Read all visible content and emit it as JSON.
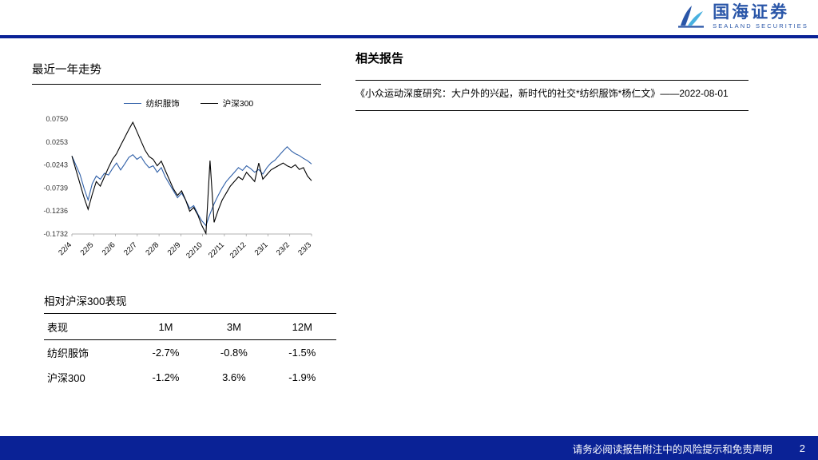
{
  "header": {
    "logo_cn": "国海证券",
    "logo_en": "SEALAND SECURITIES"
  },
  "colors": {
    "navy_bar": "#0a2296",
    "logo_blue": "#2a56a8",
    "series_blue": "#3060a8",
    "series_black": "#000000"
  },
  "left": {
    "chart_section_title": "最近一年走势",
    "table_section_title": "相对沪深300表现",
    "table": {
      "headers": [
        "表现",
        "1M",
        "3M",
        "12M"
      ],
      "rows": [
        {
          "label": "纺织服饰",
          "values": [
            "-2.7%",
            "-0.8%",
            "-1.5%"
          ]
        },
        {
          "label": "沪深300",
          "values": [
            "-1.2%",
            "3.6%",
            "-1.9%"
          ]
        }
      ]
    }
  },
  "right": {
    "title": "相关报告",
    "report": "《小众运动深度研究：大户外的兴起，新时代的社交*纺织服饰*杨仁文》——2022-08-01"
  },
  "footer": {
    "disclaimer": "请务必阅读报告附注中的风险提示和免责声明",
    "page": "2"
  },
  "chart_data": {
    "type": "line",
    "title": "最近一年走势",
    "legend_position": "top",
    "grid": false,
    "ylim": [
      -0.1732,
      0.075
    ],
    "y_tick_labels": [
      "0.0750",
      "0.0253",
      "-0.0243",
      "-0.0739",
      "-0.1236",
      "-0.1732"
    ],
    "x_tick_labels": [
      "22/4",
      "22/5",
      "22/6",
      "22/7",
      "22/8",
      "22/9",
      "22/10",
      "22/11",
      "22/12",
      "23/1",
      "23/2",
      "23/3"
    ],
    "series": [
      {
        "name": "纺织服饰",
        "color": "#3060a8",
        "values": [
          -0.005,
          -0.025,
          -0.045,
          -0.075,
          -0.1,
          -0.065,
          -0.048,
          -0.055,
          -0.042,
          -0.046,
          -0.032,
          -0.02,
          -0.035,
          -0.022,
          -0.008,
          -0.002,
          -0.012,
          -0.006,
          -0.02,
          -0.03,
          -0.026,
          -0.04,
          -0.03,
          -0.05,
          -0.065,
          -0.08,
          -0.095,
          -0.085,
          -0.1,
          -0.118,
          -0.112,
          -0.13,
          -0.145,
          -0.155,
          -0.13,
          -0.108,
          -0.09,
          -0.074,
          -0.06,
          -0.05,
          -0.04,
          -0.03,
          -0.036,
          -0.026,
          -0.032,
          -0.04,
          -0.034,
          -0.044,
          -0.03,
          -0.02,
          -0.014,
          -0.004,
          0.006,
          0.015,
          0.006,
          0.0,
          -0.004,
          -0.01,
          -0.015,
          -0.022
        ]
      },
      {
        "name": "沪深300",
        "color": "#000000",
        "values": [
          -0.005,
          -0.035,
          -0.065,
          -0.095,
          -0.12,
          -0.088,
          -0.06,
          -0.07,
          -0.05,
          -0.03,
          -0.012,
          0.0,
          0.018,
          0.035,
          0.052,
          0.068,
          0.048,
          0.028,
          0.008,
          -0.006,
          -0.012,
          -0.026,
          -0.016,
          -0.036,
          -0.056,
          -0.076,
          -0.09,
          -0.08,
          -0.1,
          -0.124,
          -0.116,
          -0.132,
          -0.155,
          -0.172,
          -0.015,
          -0.148,
          -0.122,
          -0.1,
          -0.085,
          -0.07,
          -0.06,
          -0.05,
          -0.056,
          -0.04,
          -0.05,
          -0.06,
          -0.02,
          -0.055,
          -0.045,
          -0.035,
          -0.03,
          -0.025,
          -0.02,
          -0.026,
          -0.03,
          -0.024,
          -0.034,
          -0.03,
          -0.048,
          -0.058
        ]
      }
    ]
  }
}
